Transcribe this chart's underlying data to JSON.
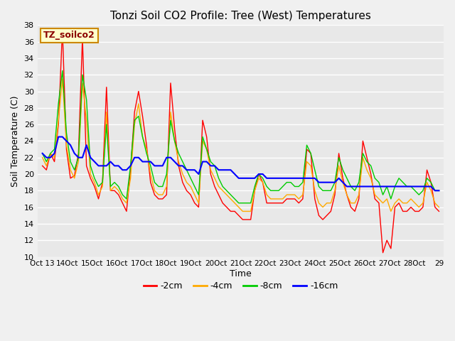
{
  "title": "Tonzi Soil CO2 Profile: Tree (West) Temperatures",
  "xlabel": "Time",
  "ylabel": "Soil Temperature (C)",
  "ylim": [
    10,
    38
  ],
  "yticks": [
    10,
    12,
    14,
    16,
    18,
    20,
    22,
    24,
    26,
    28,
    30,
    32,
    34,
    36,
    38
  ],
  "legend_label": "TZ_soilco2",
  "series_labels": [
    "-2cm",
    "-4cm",
    "-8cm",
    "-16cm"
  ],
  "series_colors": [
    "#ff0000",
    "#ffaa00",
    "#00cc00",
    "#0000ff"
  ],
  "x_tick_labels": [
    "Oct 13",
    "14Oct",
    "15Oct",
    "16Oct",
    "17Oct",
    "18Oct",
    "19Oct",
    "20Oct",
    "21Oct",
    "22Oct",
    "23Oct",
    "24Oct",
    "25Oct",
    "26Oct",
    "27Oct",
    "28Oct",
    "29"
  ],
  "fig_bg_color": "#f0f0f0",
  "plot_bg_color": "#e8e8e8",
  "d2cm": [
    21.0,
    20.5,
    22.5,
    21.5,
    26.0,
    37.5,
    23.0,
    19.5,
    19.8,
    22.5,
    36.5,
    21.0,
    19.5,
    18.5,
    17.0,
    19.0,
    30.5,
    18.0,
    18.0,
    17.5,
    16.5,
    15.5,
    20.5,
    27.5,
    30.0,
    27.0,
    23.5,
    19.0,
    17.5,
    17.0,
    17.0,
    17.5,
    31.0,
    25.5,
    21.0,
    19.0,
    18.0,
    17.5,
    16.5,
    16.0,
    26.5,
    24.5,
    20.0,
    18.5,
    17.5,
    16.5,
    16.0,
    15.5,
    15.5,
    15.0,
    14.5,
    14.5,
    14.5,
    18.0,
    20.0,
    19.0,
    16.5,
    16.5,
    16.5,
    16.5,
    16.5,
    17.0,
    17.0,
    17.0,
    16.5,
    17.0,
    23.0,
    22.5,
    17.0,
    15.0,
    14.5,
    15.0,
    15.5,
    17.5,
    22.5,
    19.5,
    17.5,
    16.0,
    15.5,
    17.0,
    24.0,
    22.0,
    20.0,
    17.0,
    16.5,
    10.5,
    12.0,
    11.0,
    16.0,
    16.5,
    15.5,
    15.5,
    16.0,
    15.5,
    15.5,
    16.0,
    20.5,
    19.0,
    16.0,
    15.5
  ],
  "d4cm": [
    22.0,
    21.0,
    22.5,
    22.0,
    26.5,
    31.5,
    23.5,
    20.5,
    19.5,
    21.5,
    31.0,
    26.5,
    20.0,
    19.0,
    17.5,
    18.5,
    27.5,
    18.0,
    18.5,
    18.0,
    17.0,
    16.5,
    19.5,
    26.0,
    28.5,
    24.5,
    23.0,
    20.0,
    18.0,
    17.5,
    17.5,
    18.5,
    27.5,
    24.0,
    21.5,
    20.0,
    19.0,
    18.5,
    17.5,
    16.5,
    24.0,
    23.0,
    20.5,
    19.5,
    18.5,
    18.0,
    17.5,
    17.0,
    16.5,
    16.0,
    15.5,
    15.5,
    15.5,
    18.0,
    19.5,
    19.0,
    17.5,
    17.0,
    17.0,
    17.0,
    17.0,
    17.5,
    17.5,
    17.5,
    17.0,
    17.5,
    21.5,
    21.0,
    18.0,
    16.5,
    16.0,
    16.5,
    16.5,
    18.0,
    21.0,
    19.0,
    17.5,
    16.5,
    16.5,
    17.5,
    22.0,
    20.5,
    19.5,
    17.5,
    17.0,
    16.5,
    17.0,
    15.5,
    16.5,
    17.0,
    16.5,
    16.5,
    17.0,
    16.5,
    16.0,
    16.5,
    19.0,
    18.0,
    16.5,
    16.0
  ],
  "d8cm": [
    22.5,
    21.5,
    22.5,
    23.0,
    28.5,
    32.5,
    25.0,
    21.5,
    20.5,
    22.0,
    32.0,
    29.0,
    21.0,
    19.5,
    18.5,
    19.0,
    26.0,
    18.5,
    19.0,
    18.5,
    17.5,
    17.0,
    21.0,
    26.5,
    27.0,
    24.5,
    22.5,
    21.0,
    19.0,
    18.5,
    18.5,
    20.0,
    26.5,
    24.0,
    22.5,
    21.5,
    20.5,
    19.5,
    18.5,
    17.5,
    24.5,
    23.0,
    21.5,
    21.0,
    19.5,
    18.5,
    18.0,
    17.5,
    17.0,
    16.5,
    16.5,
    16.5,
    16.5,
    18.5,
    20.0,
    19.5,
    18.5,
    18.0,
    18.0,
    18.0,
    18.5,
    19.0,
    19.0,
    18.5,
    18.5,
    19.0,
    23.5,
    22.5,
    20.5,
    18.5,
    18.0,
    18.0,
    18.0,
    19.0,
    22.0,
    20.5,
    19.5,
    18.5,
    18.0,
    19.0,
    22.5,
    21.5,
    21.0,
    19.5,
    19.0,
    17.5,
    18.5,
    17.0,
    18.5,
    19.5,
    19.0,
    18.5,
    18.5,
    18.0,
    17.5,
    18.0,
    19.5,
    19.0,
    18.0,
    18.0
  ],
  "d16cm": [
    22.5,
    22.0,
    22.0,
    22.5,
    24.5,
    24.5,
    24.0,
    23.5,
    22.5,
    22.0,
    22.0,
    23.5,
    22.0,
    21.5,
    21.0,
    21.0,
    21.0,
    21.5,
    21.0,
    21.0,
    20.5,
    20.5,
    21.0,
    22.0,
    22.0,
    21.5,
    21.5,
    21.5,
    21.0,
    21.0,
    21.0,
    22.0,
    22.0,
    21.5,
    21.0,
    21.0,
    20.5,
    20.5,
    20.5,
    20.0,
    21.5,
    21.5,
    21.0,
    21.0,
    20.5,
    20.5,
    20.5,
    20.5,
    20.0,
    19.5,
    19.5,
    19.5,
    19.5,
    19.5,
    20.0,
    20.0,
    19.5,
    19.5,
    19.5,
    19.5,
    19.5,
    19.5,
    19.5,
    19.5,
    19.5,
    19.5,
    19.5,
    19.5,
    19.5,
    19.0,
    19.0,
    19.0,
    19.0,
    19.0,
    19.5,
    19.0,
    18.5,
    18.5,
    18.5,
    18.5,
    18.5,
    18.5,
    18.5,
    18.5,
    18.5,
    18.5,
    18.5,
    18.5,
    18.5,
    18.5,
    18.5,
    18.5,
    18.5,
    18.5,
    18.5,
    18.5,
    18.5,
    18.5,
    18.0,
    18.0
  ]
}
